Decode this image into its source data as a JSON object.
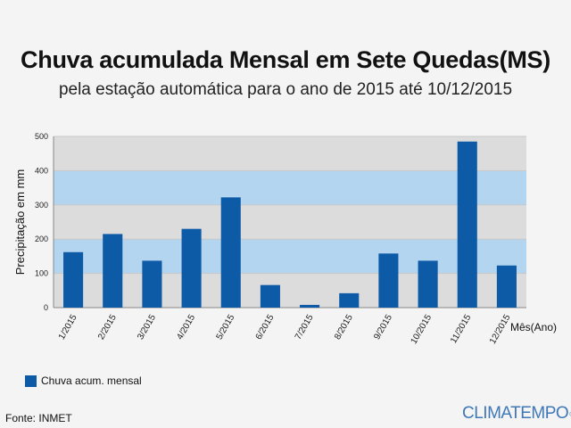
{
  "header": {
    "title": "Chuva acumulada Mensal em Sete Quedas(MS)",
    "subtitle": "pela estação automática para o ano de 2015 até 10/12/2015"
  },
  "chart_data": {
    "type": "bar",
    "categories": [
      "1/2015",
      "2/2015",
      "3/2015",
      "4/2015",
      "5/2015",
      "6/2015",
      "7/2015",
      "8/2015",
      "9/2015",
      "10/2015",
      "11/2015",
      "12/2015"
    ],
    "series": [
      {
        "name": "Chuva acum. mensal",
        "values": [
          162,
          215,
          137,
          230,
          322,
          66,
          8,
          42,
          158,
          137,
          485,
          123
        ],
        "color": "#0d5aa7"
      }
    ],
    "ylabel": "Precipitação em mm",
    "xlabel": "Mês(Ano)",
    "ylim": [
      0,
      500
    ],
    "yticks": [
      0,
      100,
      200,
      300,
      400,
      500
    ],
    "band_colors": [
      "#dcdcdc",
      "#b3d5f0"
    ],
    "grid": true,
    "legend_position": "bottom-left"
  },
  "footer": {
    "source": "Fonte: INMET",
    "brand": "CLIMATEMPO",
    "brand_mark": "®"
  }
}
